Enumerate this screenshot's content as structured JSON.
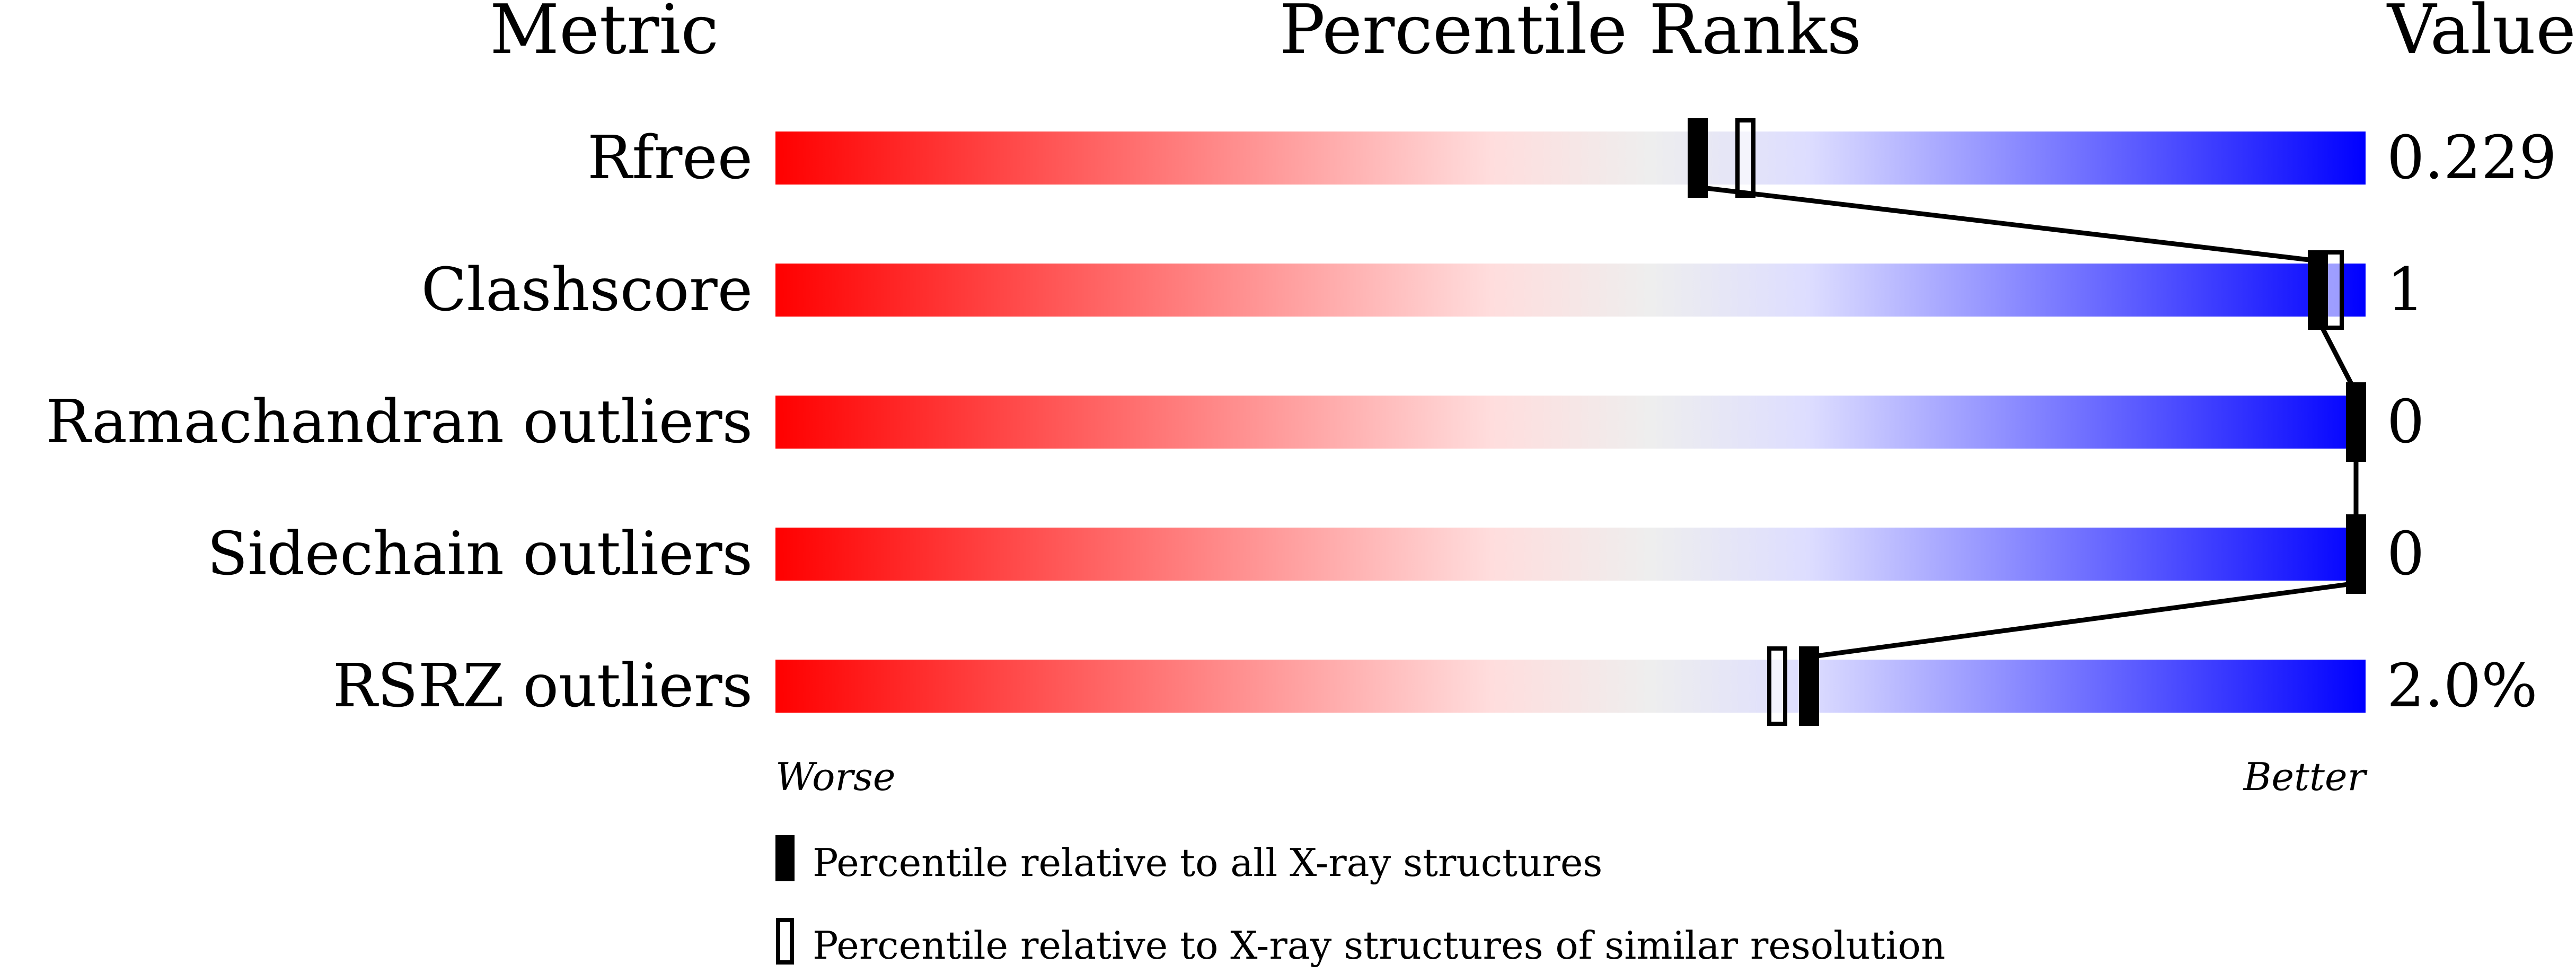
{
  "chart_data": {
    "type": "percentile-bar",
    "headers": {
      "metric": "Metric",
      "ranks": "Percentile Ranks",
      "value": "Value"
    },
    "xlim": [
      0,
      100
    ],
    "axis_labels": {
      "left": "Worse",
      "right": "Better"
    },
    "gradient_colors": [
      "#ff0000",
      "#ffdddd",
      "#eeeeee",
      "#ddddff",
      "#0000ff"
    ],
    "metrics": [
      {
        "name": "Rfree",
        "value": "0.229",
        "percentile_all": 58,
        "percentile_similar": 61
      },
      {
        "name": "Clashscore",
        "value": "1",
        "percentile_all": 97,
        "percentile_similar": 98
      },
      {
        "name": "Ramachandran outliers",
        "value": "0",
        "percentile_all": 100,
        "percentile_similar": 100
      },
      {
        "name": "Sidechain outliers",
        "value": "0",
        "percentile_all": 100,
        "percentile_similar": 100
      },
      {
        "name": "RSRZ outliers",
        "value": "2.0%",
        "percentile_all": 65,
        "percentile_similar": 63
      }
    ],
    "legend": [
      {
        "style": "filled",
        "label": "Percentile relative to all X-ray structures"
      },
      {
        "style": "outline",
        "label": "Percentile relative to X-ray structures of similar resolution"
      }
    ]
  }
}
